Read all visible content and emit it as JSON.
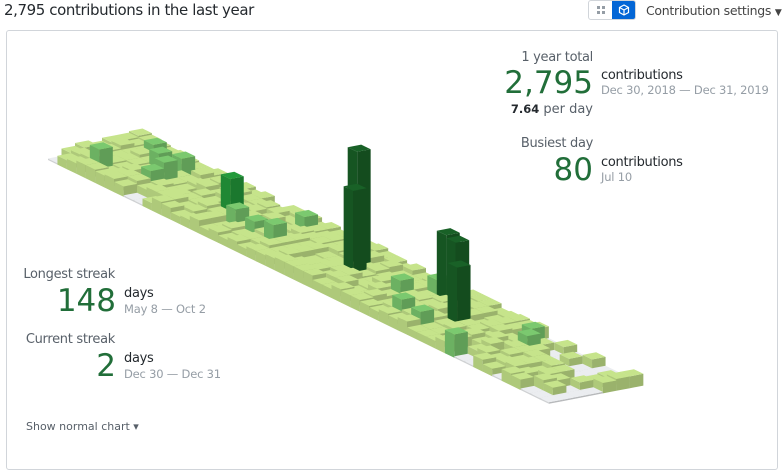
{
  "header": {
    "title": "2,795 contributions in the last year",
    "settings_label": "Contribution settings",
    "views": [
      {
        "icon": "squares-grid-icon",
        "active": false
      },
      {
        "icon": "cube-icon",
        "active": true
      }
    ]
  },
  "stats": {
    "year_total_label": "1 year total",
    "year_total": "2,795",
    "year_total_unit": "contributions",
    "year_range": "Dec 30, 2018 — Dec 31, 2019",
    "per_day_value": "7.64",
    "per_day_label": "per day",
    "busiest_label": "Busiest day",
    "busiest_value": "80",
    "busiest_unit": "contributions",
    "busiest_date": "Jul 10",
    "longest_label": "Longest streak",
    "longest_value": "148",
    "longest_unit": "days",
    "longest_range": "May 8 — Oct 2",
    "current_label": "Current streak",
    "current_value": "2",
    "current_unit": "days",
    "current_range": "Dec 30 — Dec 31"
  },
  "footer": {
    "show_normal_chart": "Show normal chart ▾"
  },
  "colors": {
    "empty": "#ebedf0",
    "level1": "#c6e48b",
    "level2": "#7bc96f",
    "level3": "#239a3b",
    "level4": "#196127",
    "accent": "#216e39"
  },
  "chart_data": {
    "type": "isometric-contribution-calendar",
    "weeks": 53,
    "days_per_week": 7,
    "max": 80,
    "peaks": [
      {
        "week": 3,
        "day": 1,
        "count": 14
      },
      {
        "week": 3,
        "day": 5,
        "count": 10
      },
      {
        "week": 5,
        "day": 4,
        "count": 12
      },
      {
        "week": 6,
        "day": 5,
        "count": 10
      },
      {
        "week": 7,
        "day": 3,
        "count": 14
      },
      {
        "week": 7,
        "day": 2,
        "count": 10
      },
      {
        "week": 10,
        "day": 5,
        "count": 6
      },
      {
        "week": 14,
        "day": 3,
        "count": 25
      },
      {
        "week": 16,
        "day": 2,
        "count": 12
      },
      {
        "week": 18,
        "day": 2,
        "count": 10
      },
      {
        "week": 19,
        "day": 5,
        "count": 11
      },
      {
        "week": 20,
        "day": 2,
        "count": 14
      },
      {
        "week": 26,
        "day": 4,
        "count": 80
      },
      {
        "week": 27,
        "day": 3,
        "count": 58
      },
      {
        "week": 32,
        "day": 3,
        "count": 12
      },
      {
        "week": 33,
        "day": 5,
        "count": 12
      },
      {
        "week": 34,
        "day": 5,
        "count": 46
      },
      {
        "week": 35,
        "day": 5,
        "count": 44
      },
      {
        "week": 35,
        "day": 1,
        "count": 12
      },
      {
        "week": 38,
        "day": 3,
        "count": 40
      },
      {
        "week": 37,
        "day": 1,
        "count": 10
      },
      {
        "week": 42,
        "day": 0,
        "count": 12
      },
      {
        "week": 43,
        "day": 5,
        "count": 10
      },
      {
        "week": 44,
        "day": 4,
        "count": 10
      }
    ]
  }
}
